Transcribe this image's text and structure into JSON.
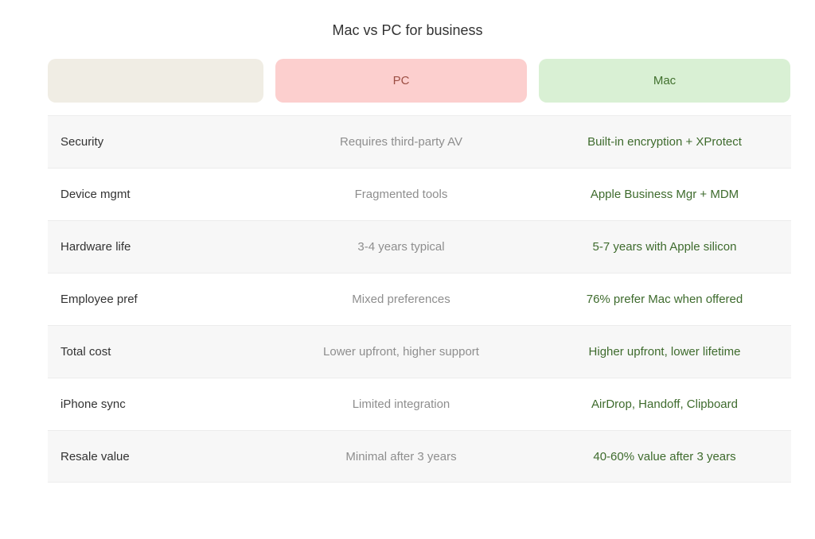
{
  "title": "Mac vs PC for business",
  "colors": {
    "feature_header_bg": "#f0ede4",
    "pc_header_bg": "#fccfce",
    "pc_header_text": "#9c4f44",
    "mac_header_bg": "#d9f0d4",
    "mac_header_text": "#41702e",
    "mac_cell_text": "#3e6b2d",
    "pc_cell_text": "#8e8e8e",
    "row_stripe_bg": "#f7f7f7",
    "row_border": "#ececec"
  },
  "chart_data": {
    "type": "table",
    "title": "Mac vs PC for business",
    "columns": [
      "",
      "PC",
      "Mac"
    ],
    "rows": [
      [
        "Security",
        "Requires third-party AV",
        "Built-in encryption + XProtect"
      ],
      [
        "Device mgmt",
        "Fragmented tools",
        "Apple Business Mgr + MDM"
      ],
      [
        "Hardware life",
        "3-4 years typical",
        "5-7 years with Apple silicon"
      ],
      [
        "Employee pref",
        "Mixed preferences",
        "76% prefer Mac when offered"
      ],
      [
        "Total cost",
        "Lower upfront, higher support",
        "Higher upfront, lower lifetime"
      ],
      [
        "iPhone sync",
        "Limited integration",
        "AirDrop, Handoff, Clipboard"
      ],
      [
        "Resale value",
        "Minimal after 3 years",
        "40-60% value after 3 years"
      ]
    ]
  },
  "table": {
    "columns": [
      {
        "label": ""
      },
      {
        "label": "PC"
      },
      {
        "label": "Mac"
      }
    ],
    "rows": [
      {
        "feature": "Security",
        "pc": "Requires third-party AV",
        "mac": "Built-in encryption + XProtect"
      },
      {
        "feature": "Device mgmt",
        "pc": "Fragmented tools",
        "mac": "Apple Business Mgr + MDM"
      },
      {
        "feature": "Hardware life",
        "pc": "3-4 years typical",
        "mac": "5-7 years with Apple silicon"
      },
      {
        "feature": "Employee pref",
        "pc": "Mixed preferences",
        "mac": "76% prefer Mac when offered"
      },
      {
        "feature": "Total cost",
        "pc": "Lower upfront, higher support",
        "mac": "Higher upfront, lower lifetime"
      },
      {
        "feature": "iPhone sync",
        "pc": "Limited integration",
        "mac": "AirDrop, Handoff, Clipboard"
      },
      {
        "feature": "Resale value",
        "pc": "Minimal after 3 years",
        "mac": "40-60% value after 3 years"
      }
    ]
  }
}
